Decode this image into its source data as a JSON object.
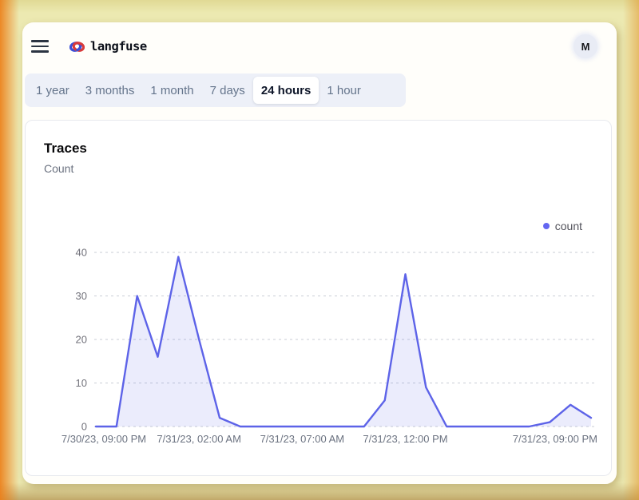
{
  "header": {
    "brand": "langfuse",
    "avatar_initial": "M"
  },
  "time_range_tabs": {
    "items": [
      {
        "label": "1 year",
        "selected": false
      },
      {
        "label": "3 months",
        "selected": false
      },
      {
        "label": "1 month",
        "selected": false
      },
      {
        "label": "7 days",
        "selected": false
      },
      {
        "label": "24 hours",
        "selected": true
      },
      {
        "label": "1 hour",
        "selected": false
      }
    ]
  },
  "card": {
    "title": "Traces",
    "subtitle": "Count"
  },
  "chart_data": {
    "type": "area",
    "title": "Traces",
    "ylabel": "Count",
    "ylim": [
      0,
      40
    ],
    "yticks": [
      0,
      10,
      20,
      30,
      40
    ],
    "grid": "dashed-horizontal",
    "legend_position": "top-right",
    "legend": [
      {
        "label": "count",
        "color": "#6366f1"
      }
    ],
    "series": [
      {
        "name": "count",
        "color": "#5d63e8",
        "fill_opacity": 0.12,
        "values": [
          0,
          0,
          30,
          16,
          39,
          20,
          2,
          0,
          0,
          0,
          0,
          0,
          0,
          0,
          6,
          35,
          9,
          0,
          0,
          0,
          0,
          0,
          1,
          5,
          2
        ]
      }
    ],
    "x_hours_span": 24,
    "xticks": [
      {
        "index": 0,
        "label": "7/30/23, 09:00 PM"
      },
      {
        "index": 5,
        "label": "7/31/23, 02:00 AM"
      },
      {
        "index": 10,
        "label": "7/31/23, 07:00 AM"
      },
      {
        "index": 15,
        "label": "7/31/23, 12:00 PM"
      },
      {
        "index": 24,
        "label": "7/31/23, 09:00 PM"
      }
    ]
  }
}
